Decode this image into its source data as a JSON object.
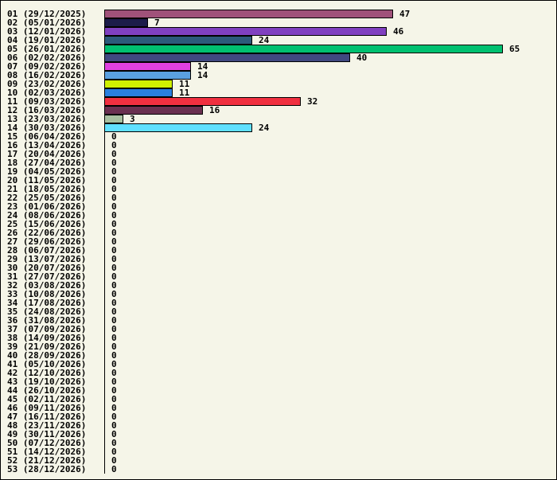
{
  "chart_data": {
    "type": "bar",
    "orientation": "horizontal",
    "categories": [
      "01 (29/12/2025)",
      "02 (05/01/2026)",
      "03 (12/01/2026)",
      "04 (19/01/2026)",
      "05 (26/01/2026)",
      "06 (02/02/2026)",
      "07 (09/02/2026)",
      "08 (16/02/2026)",
      "09 (23/02/2026)",
      "10 (02/03/2026)",
      "11 (09/03/2026)",
      "12 (16/03/2026)",
      "13 (23/03/2026)",
      "14 (30/03/2026)",
      "15 (06/04/2026)",
      "16 (13/04/2026)",
      "17 (20/04/2026)",
      "18 (27/04/2026)",
      "19 (04/05/2026)",
      "20 (11/05/2026)",
      "21 (18/05/2026)",
      "22 (25/05/2026)",
      "23 (01/06/2026)",
      "24 (08/06/2026)",
      "25 (15/06/2026)",
      "26 (22/06/2026)",
      "27 (29/06/2026)",
      "28 (06/07/2026)",
      "29 (13/07/2026)",
      "30 (20/07/2026)",
      "31 (27/07/2026)",
      "32 (03/08/2026)",
      "33 (10/08/2026)",
      "34 (17/08/2026)",
      "35 (24/08/2026)",
      "36 (31/08/2026)",
      "37 (07/09/2026)",
      "38 (14/09/2026)",
      "39 (21/09/2026)",
      "40 (28/09/2026)",
      "41 (05/10/2026)",
      "42 (12/10/2026)",
      "43 (19/10/2026)",
      "44 (26/10/2026)",
      "45 (02/11/2026)",
      "46 (09/11/2026)",
      "47 (16/11/2026)",
      "48 (23/11/2026)",
      "49 (30/11/2026)",
      "50 (07/12/2026)",
      "51 (14/12/2026)",
      "52 (21/12/2026)",
      "53 (28/12/2026)"
    ],
    "values": [
      47,
      7,
      46,
      24,
      65,
      40,
      14,
      14,
      11,
      11,
      32,
      16,
      3,
      24,
      0,
      0,
      0,
      0,
      0,
      0,
      0,
      0,
      0,
      0,
      0,
      0,
      0,
      0,
      0,
      0,
      0,
      0,
      0,
      0,
      0,
      0,
      0,
      0,
      0,
      0,
      0,
      0,
      0,
      0,
      0,
      0,
      0,
      0,
      0,
      0,
      0,
      0,
      0
    ],
    "colors": [
      "#a0527a",
      "#1c1c4a",
      "#8040c0",
      "#2c5a7a",
      "#00c070",
      "#404880",
      "#e040e0",
      "#5aa0e0",
      "#d0f000",
      "#2a80e0",
      "#f03040",
      "#6a3050",
      "#a8c0a0",
      "#60e0ff"
    ],
    "xlim": [
      0,
      65
    ],
    "grid": false,
    "title": "",
    "xlabel": "",
    "ylabel": ""
  },
  "colors": {
    "background": "#f5f5e8",
    "border": "#000000",
    "text": "#000000"
  }
}
